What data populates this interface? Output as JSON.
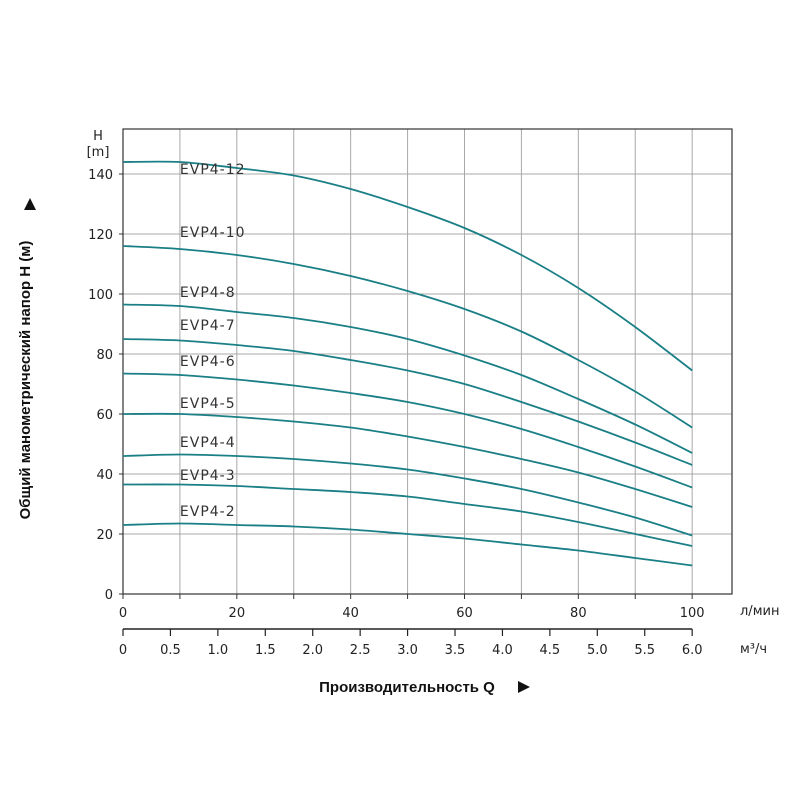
{
  "chart_data": {
    "type": "line",
    "y_axis": {
      "symbol": "H",
      "unit": "[m]",
      "title": "Общий манометрический напор H (м)",
      "range": [
        0,
        155
      ],
      "ticks": [
        0,
        20,
        40,
        60,
        80,
        100,
        120,
        140
      ],
      "grid_step": 20
    },
    "x_axis": {
      "title": "Производительность Q",
      "range": [
        0,
        107
      ],
      "ticks": [
        0,
        20,
        40,
        60,
        80,
        100
      ],
      "grid_step": 10,
      "unit": "л/мин",
      "secondary": {
        "unit": "м³/ч",
        "ticks": [
          "0",
          "0.5",
          "1.0",
          "1.5",
          "2.0",
          "2.5",
          "3.0",
          "3.5",
          "4.0",
          "4.5",
          "5.0",
          "5.5",
          "6.0"
        ],
        "scale_lpm_per_unit": 16.6667
      }
    },
    "grid": true,
    "color": "#1a7f86",
    "series": [
      {
        "name": "EVP4-12",
        "x": [
          0,
          10,
          20,
          30,
          40,
          50,
          60,
          70,
          80,
          90,
          100
        ],
        "y": [
          144,
          144,
          142,
          139.5,
          135,
          129,
          122,
          113,
          102,
          89,
          74.5
        ],
        "label_at": [
          10,
          140
        ]
      },
      {
        "name": "EVP4-10",
        "x": [
          0,
          10,
          20,
          30,
          40,
          50,
          60,
          70,
          80,
          90,
          100
        ],
        "y": [
          116,
          115,
          113,
          110,
          106,
          101,
          95,
          87.5,
          78,
          67.5,
          55.5
        ],
        "label_at": [
          10,
          119
        ]
      },
      {
        "name": "EVP4-8",
        "x": [
          0,
          10,
          20,
          30,
          40,
          50,
          60,
          70,
          80,
          90,
          100
        ],
        "y": [
          96.5,
          96,
          94,
          92,
          89,
          85,
          79.5,
          73,
          65,
          56.5,
          47
        ],
        "label_at": [
          10,
          99
        ]
      },
      {
        "name": "EVP4-7",
        "x": [
          0,
          10,
          20,
          30,
          40,
          50,
          60,
          70,
          80,
          90,
          100
        ],
        "y": [
          85,
          84.5,
          83,
          81,
          78,
          74.5,
          70,
          64,
          57.5,
          50.5,
          43
        ],
        "label_at": [
          10,
          88
        ]
      },
      {
        "name": "EVP4-6",
        "x": [
          0,
          10,
          20,
          30,
          40,
          50,
          60,
          70,
          80,
          90,
          100
        ],
        "y": [
          73.5,
          73,
          71.5,
          69.5,
          67,
          64,
          60,
          55,
          49,
          42.5,
          35.5
        ],
        "label_at": [
          10,
          76
        ]
      },
      {
        "name": "EVP4-5",
        "x": [
          0,
          10,
          20,
          30,
          40,
          50,
          60,
          70,
          80,
          90,
          100
        ],
        "y": [
          60,
          60,
          59,
          57.5,
          55.5,
          52.5,
          49,
          45,
          40.5,
          35,
          29
        ],
        "label_at": [
          10,
          62
        ]
      },
      {
        "name": "EVP4-4",
        "x": [
          0,
          10,
          20,
          30,
          40,
          50,
          60,
          70,
          80,
          90,
          100
        ],
        "y": [
          46,
          46.5,
          46,
          45,
          43.5,
          41.5,
          38.5,
          35,
          30.5,
          25.5,
          19.5
        ],
        "label_at": [
          10,
          49
        ]
      },
      {
        "name": "EVP4-3",
        "x": [
          0,
          10,
          20,
          30,
          40,
          50,
          60,
          70,
          80,
          90,
          100
        ],
        "y": [
          36.5,
          36.5,
          36,
          35,
          34,
          32.5,
          30,
          27.5,
          24,
          20,
          16
        ],
        "label_at": [
          10,
          38
        ]
      },
      {
        "name": "EVP4-2",
        "x": [
          0,
          10,
          20,
          30,
          40,
          50,
          60,
          70,
          80,
          90,
          100
        ],
        "y": [
          23,
          23.5,
          23,
          22.5,
          21.5,
          20,
          18.5,
          16.5,
          14.5,
          12,
          9.5
        ],
        "label_at": [
          10,
          26
        ]
      }
    ]
  }
}
